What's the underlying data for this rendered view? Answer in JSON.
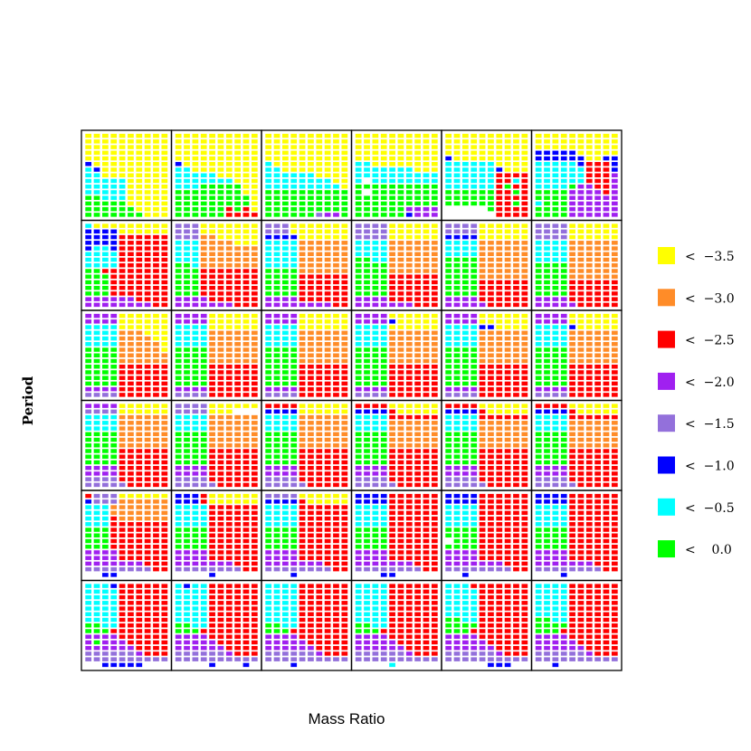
{
  "chart_data": {
    "type": "heatmap",
    "title": "",
    "xlabel": "Mass Ratio",
    "ylabel": "Period",
    "panel_grid": {
      "rows": 6,
      "cols": 6
    },
    "cell_grid": {
      "rows": 15,
      "cols": 10
    },
    "legend": {
      "placement": "right",
      "entries": [
        {
          "label": "<  −3.5",
          "color": "#FFFF00"
        },
        {
          "label": "<  −3.0",
          "color": "#FF8C28"
        },
        {
          "label": "<  −2.5",
          "color": "#FF0000"
        },
        {
          "label": "<  −2.0",
          "color": "#A020F0"
        },
        {
          "label": "<  −1.5",
          "color": "#9370DB"
        },
        {
          "label": "<  −1.0",
          "color": "#0000FF"
        },
        {
          "label": "<  −0.5",
          "color": "#00FFFF"
        },
        {
          "label": "<    0.0",
          "color": "#00FF00"
        }
      ]
    },
    "palette": {
      "Y": "#FFFF00",
      "O": "#FF8C28",
      "R": "#FF0000",
      "P": "#A020F0",
      "L": "#9370DB",
      "B": "#0000FF",
      "C": "#00FFFF",
      "G": "#00FF00",
      "W": "#FFFFFF"
    },
    "panels": [
      [
        [
          "YYYYYYYYYY",
          "YYYYYYYYYY",
          "YYYYYYYYYY",
          "YYYYYYYYYY",
          "YYYYYYYYYY",
          "BYYYYYYYYY",
          "CBYYYYYYYY",
          "CCYYYYYYYY",
          "CCCCCYYYYY",
          "CCCCCYYYYY",
          "CCCCCYYYYY",
          "GGCCCYYYYY",
          "GGGGGYYYYY",
          "GGGGGGYYYY",
          "GGGGGGGYYY"
        ],
        [
          "YYYYYYYYYY",
          "YYYYYYYYYY",
          "YYYYYYYYYY",
          "YYYYYYYYYY",
          "YYYYYYYYYY",
          "BYYYYYYYYY",
          "CCYYYYYYYY",
          "CCCCCYYYYY",
          "CCCCCCCYYY",
          "CCCGGGGGYY",
          "GGGGGGGGYY",
          "GGGGGGGGGY",
          "GGGGGGGGGY",
          "GGGGGGRGRY",
          "GGGGGGRRRR"
        ],
        [
          "YYYYYYYYYY",
          "YYYYYYYYYY",
          "YYYYYYYYYY",
          "YYYYYYYYYY",
          "YYYYYYYYYY",
          "CYYYYYYYYY",
          "CCYYYYYYYY",
          "CCCCCCYYYY",
          "CCCCCCCCYY",
          "CCCCCCCCCY",
          "GGGGGGGGGG",
          "GGGGGGGGGG",
          "GGGGGGGGGG",
          "GGGGGGGGGG",
          "GGGGGGLPPG"
        ],
        [
          "YYYYYYYYYY",
          "YYYYYYYYYY",
          "YYYYYYYYYY",
          "YYYYYYYYYY",
          "YYYYYYYYYY",
          "CCYYYYYYYY",
          "CCCCCCCYYY",
          "CCCCCCCCCC",
          "CWCCCCCCCC",
          "GGGGGGGGGG",
          "GWGGGGGGGG",
          "GGGGGGGGGG",
          "GGGGGGGGGG",
          "GGGGGGPPPP",
          "GGGGGGBPPP"
        ],
        [
          "YYYYYYYYYY",
          "YYYYYYYYYY",
          "YYYYYYYYYY",
          "YYYYYYYYYY",
          "BYYYYYYYYY",
          "CCCCCCYYYY",
          "CCCCCCBYYY",
          "CCCCCCRRRR",
          "CCCCCCRRCR",
          "CCCCCCRGRR",
          "GGGGGGRRGR",
          "GGGGGGRRRR",
          "GGGGGGRRGR",
          "WWWWWGRRRR",
          "WWWWWWRRRR"
        ],
        [
          "YYYYYYYYYY",
          "YYYYYYYYYY",
          "YYYYYYYYYY",
          "BBBBBYYYYY",
          "BBBBBBYYBB",
          "CCCCCBRRRB",
          "CCCCCCRRRB",
          "CCCCCCRRRP",
          "CCCCCCRRRP",
          "CCCCGPPRRP",
          "GGGGPPPPRP",
          "GGGGPPPPPP",
          "CGGGPPPPPP",
          "GGGGPPPPPP",
          "GGGGPPPPPP"
        ]
      ],
      [
        [
          "CYYYYYYYYY",
          "BBBBYYYYYY",
          "BBBBRRRRRR",
          "BBBBRRRRRR",
          "BCCBRRRRRR",
          "CCCCRRRRRR",
          "CCCCRRRRRR",
          "CCCCRRRRRR",
          "GGRRRRRRRR",
          "GGGRRRRRRR",
          "GGGRRRRRRR",
          "GGGRRRRRRR",
          "GGGRRRRRRR",
          "PPPPPPRRRR",
          "PPPPPPPPRR"
        ],
        [
          "LLLYYYYYYY",
          "LLLYYYYYYY",
          "LLLOOYYYYY",
          "CCCOOOOYYY",
          "CCCOOOOOOO",
          "CCCOOOOOOO",
          "CCCOOOOOOO",
          "GGCOOOOOOO",
          "GGGRRRRRRR",
          "GGGRRRRRRR",
          "GGGRRRRRRR",
          "GGGRRRRRRR",
          "GGGRRRRRRR",
          "PPPPRRRRRR",
          "PPPPPPPRRR"
        ],
        [
          "LLLYYYYYYY",
          "LLLYYYYYYY",
          "BBBBYYYYYY",
          "CCCCOOOOOO",
          "CCCCOOOOOO",
          "CCCCOOOOOO",
          "CCCCOOOOOO",
          "CCCCOOOOOO",
          "GGGGOOOOOO",
          "GGGGRRRRRR",
          "GGGGRRRRRR",
          "GGGGRRRRRR",
          "GGGGRRRRRR",
          "PPPPRRRRRR",
          "PPPPPPPPRR"
        ],
        [
          "LLLLYYYYYY",
          "LLLLYYYYYY",
          "LLLLYYYYYY",
          "CCCCOOOOOO",
          "CCCCOOOOOO",
          "CCCCOOOOOO",
          "GGCCOOOOOO",
          "GGGGOOOOOO",
          "GGGGOOOOOO",
          "GGGGRRRRRR",
          "GGGGRRRRRR",
          "GGGGRRRRRR",
          "GGGGRRRRRR",
          "PPPPRRRRRR",
          "PPPPPPPRRR"
        ],
        [
          "LLLLYYYYYY",
          "LLLLYYYYYY",
          "BBBBYYYYYY",
          "CCCCOOOOOO",
          "CCCCOOOOOO",
          "CCCCOOOOOO",
          "GGGGOOOOOO",
          "GGGGOOOOOO",
          "GGGGOOOOOO",
          "GGGGOOOOOO",
          "GGGGRRRRRR",
          "GGGGRRRRRR",
          "GGGGRRRRRR",
          "PPPPRRRRRR",
          "PPPPPRRRRR"
        ],
        [
          "LLLLYYYYYY",
          "LLLLYYYYYY",
          "LLLLYYYYYY",
          "CCCCOOOOOO",
          "CCCCOOOOOO",
          "CCCCOOOOOO",
          "CCCCOOOOOO",
          "GGGGOOOOOO",
          "GGGGOOOOOO",
          "GGGGOOOOOO",
          "GGGGRRRRRR",
          "GGGGRRRRRR",
          "GGGGRRRRRR",
          "PPPPRRRRRR",
          "PPPPPRRRRR"
        ]
      ],
      [
        [
          "PPPPYYYYYY",
          "PPPPYYYYYY",
          "CCCCYYYYYY",
          "CCCCOOOYYY",
          "CCCCOOOOYY",
          "CCCCOOOOOY",
          "GGGGOOOOOY",
          "GGGGOOOOOO",
          "GGGGOOOOOO",
          "GGGGRRRRRR",
          "GGGGRRRRRR",
          "GGGGRRRRRR",
          "GGGGRRRRRR",
          "PPPPRRRRRR",
          "LLLLRRRRRR"
        ],
        [
          "PPPPYYYYYY",
          "PPPPYYYYYY",
          "CCCCYYYYYY",
          "CCCCOOOOOO",
          "CCCCOOOOOO",
          "CCCCOOOOOO",
          "GGGGOOOOOO",
          "GGGGOOOOOO",
          "GGGGOOOOOO",
          "GGGGRRRRRR",
          "GGGGRRRRRR",
          "GGGGRRRRRR",
          "GGGGRRRRRR",
          "PPPPRRRRRR",
          "LLLLRRRRRR"
        ],
        [
          "PPPPYYYYYY",
          "PPPPYYYYYY",
          "CCCCYYYYYY",
          "CCCCOOOOOO",
          "CCCCOOOOOO",
          "CCCCOOOOOO",
          "GGGGOOOOOO",
          "GGGGOOOOOO",
          "GGGGOOOOOO",
          "GGGGRRRRRR",
          "GGGGRRRRRR",
          "GGGGRRRRRR",
          "GGGGRRRRRR",
          "PPPPRRRRRR",
          "LLLLRRRRRR"
        ],
        [
          "PPPPYYYYYY",
          "PPPPBYYYYY",
          "CCCCYYYYYY",
          "CCCCOOOOOO",
          "CCCCOOOOOO",
          "CCCCOOOOOO",
          "GGGGOOOOOO",
          "GGGGOOOOOO",
          "GGGGOOOOOO",
          "GGGGRRRRRR",
          "GGGGRRRRRR",
          "GGGGRRRRRR",
          "GGGGRRRRRR",
          "PPPPRRRRRR",
          "LLLLRRRRRR"
        ],
        [
          "PPPPYYYYYY",
          "PPPPYYYYYY",
          "CCCCBBYYYY",
          "CCCCOOOOOO",
          "CCCCOOOOOO",
          "CCCCOOOOOO",
          "GGGGOOOOOO",
          "GGGGOOOOOO",
          "GGGGOOOOOO",
          "GGGGRRRRRR",
          "GGGGRRRRRR",
          "GGGGRRRRRR",
          "GGGGRRRRRR",
          "PPPPRRRRRR",
          "LLLLRRRRRR"
        ],
        [
          "PPPPYYYYYY",
          "PPPPYYYYYY",
          "CCCCBYYYYY",
          "CCCCOOOOOO",
          "CCCCOOOOOO",
          "CCCCOOOOOO",
          "GGGGOOOOOO",
          "GGGGOOOOOO",
          "GGGGOOOOOO",
          "GGGGRRRRRR",
          "GGGGRRRRRR",
          "GGGGRRRRRR",
          "GGGGRRRRRR",
          "PPPPRRRRRR",
          "LLLLRRRRRR"
        ]
      ],
      [
        [
          "PPPPYYYYYY",
          "LLLLYYYYYY",
          "CCCCOOOOOO",
          "CCCCOOOOOO",
          "CCCCOOOOOO",
          "GGGGOOOOOO",
          "GGGGOOOOOO",
          "GGGGOOOOOO",
          "GGGGRRRRRR",
          "GGGGRRRRRR",
          "GGGGRRRRRR",
          "PPPPRRRRRR",
          "PPPPRRRRRR",
          "LLLLRRRRRR",
          "LLLLLRRRRR"
        ],
        [
          "LLLLYYYYYY",
          "LLLLYYYWWW",
          "CCCCOOOOOO",
          "CCCCOOOOOO",
          "CCCCOOOOOO",
          "GGGGOOOOOO",
          "GGGGOOOOOO",
          "GGGGOOOOOO",
          "GGGGRRRRRR",
          "GGGGRRRRRR",
          "GGGGRRRRRR",
          "PPPPRRRRRR",
          "PPPPRRRRRR",
          "LLLLRRRRRR",
          "LLLLLRRRRR"
        ],
        [
          "RRRRYYYYYY",
          "BBBBYYYYYY",
          "CCCCOOOOOO",
          "CCCCOOOOOO",
          "CCCCOOOOOO",
          "GGGGOOOOOO",
          "GGGGOOOOOO",
          "GGGGOOOOOO",
          "GGGGRRRRRR",
          "GGGGRRRRRR",
          "GGGGRRRRRR",
          "PPPPRRRRRR",
          "PPPPRRRRRR",
          "LLLLRRRRRR",
          "LLLLLRRRRR"
        ],
        [
          "RRRRYYYYYY",
          "BBBBRYYYYY",
          "CCCCRRRRRR",
          "CCCCOOOOOO",
          "CCCCOOOOOO",
          "GGGGOOOOOO",
          "GGGGOOOOOO",
          "GGGGOOOOOO",
          "GGGGRRRRRR",
          "GGGGRRRRRR",
          "GGGGRRRRRR",
          "PPPPRRRRRR",
          "PPPPRRRRRR",
          "LLLLRRRRRR",
          "LLLLLRRRRR"
        ],
        [
          "RRRRYYYYYY",
          "BBBBRYYYYY",
          "CCCCRRRRRR",
          "CCCCOOOOOO",
          "CCCCOOOOOO",
          "GGGGOOOOOO",
          "GGGGOOOOOO",
          "GGGGOOOOOO",
          "GGGGRRRRRR",
          "GGGGRRRRRR",
          "GGGGRRRRRR",
          "PPPPRRRRRR",
          "PPPPRRRRRR",
          "LLLLRRRRRR",
          "LLLLLRRRRR"
        ],
        [
          "RRRRYYYYYY",
          "BBBBRYYYYY",
          "CCCCRRRRRR",
          "CCCCOOOOOO",
          "CCCCOOOOOO",
          "GGGGOOOOOO",
          "GGGGOOOOOO",
          "GGGGOOOOOO",
          "GGGGRRRRRR",
          "GGGGRRRRRR",
          "GGGGRRRRRR",
          "PPPPRRRRRR",
          "PPPPRRRRRR",
          "LLLLRRRRRR",
          "LLLLLRRRRR"
        ]
      ],
      [
        [
          "RLLLYYYYYY",
          "BLLLOOOOOO",
          "CCCOOOOOOO",
          "CCCOOOOOOO",
          "CCCROOOOOO",
          "CCCRRRRRRR",
          "GGGRRRRRRR",
          "GGGRRRRRRR",
          "GGGRRRRRRR",
          "GGGRRRRRRR",
          "PPPPRRRRRR",
          "PPPPRRRRRR",
          "PPPPPPPRRR",
          "LLLLLLLLRR",
          "WWBBWWWWWW"
        ],
        [
          "BBBRYYYYYY",
          "BBBRYYYYYY",
          "CCCCRRRRRR",
          "CCCCRRRRRR",
          "CCCCRRRRRR",
          "CCCCRRRRRR",
          "GGGGRRRRRR",
          "GGGGRRRRRR",
          "GGGGRRRRRR",
          "GGGGRRRRRR",
          "PPPPRRRRRR",
          "PPPPRRRRRR",
          "PPPPPPPRRR",
          "LLLLLLLLRR",
          "WWWWBWWWWW"
        ],
        [
          "LLLLYYYYYY",
          "BBBBRYYYYY",
          "CCCCRRRRRR",
          "CCCCRRRRRR",
          "CCCCRRRRRR",
          "CCCCRRRRRR",
          "GGGGRRRRRR",
          "GGGGRRRRRR",
          "GGGGRRRRRR",
          "GGGGRRRRRR",
          "PPPPRRRRRR",
          "PPPPRRRRRR",
          "PPPPPPPRRR",
          "LLLLLLLLRR",
          "WWWBWWWWWW"
        ],
        [
          "BBBBRRRRRR",
          "BBBBRRRRRR",
          "CCCCRRRRRR",
          "CCCCRRRRRR",
          "CCCCRRRRRR",
          "CCCCRRRRRR",
          "GGGGRRRRRR",
          "GGGGRRRRRR",
          "GGGGRRRRRR",
          "GGGGRRRRRR",
          "PPPPRRRRRR",
          "PPPPRRRRRR",
          "PPPPPPPRRR",
          "LLLLLLLLRR",
          "WWWBBWWWWW"
        ],
        [
          "BBBBRRRRRR",
          "BBBBRRRRRR",
          "CCCCRRRRRR",
          "CCCCRRRRRR",
          "CCCCRRRRRR",
          "CCCCRRRRRR",
          "GGGGRRRRRR",
          "GGGGRRRRRR",
          "WGGGRRRRRR",
          "GGGGRRRRRR",
          "PPPPRRRRRR",
          "PPPPRRRRRR",
          "PPPPPPPRRR",
          "LLLLLLLLRR",
          "WWBWWWWWWW"
        ],
        [
          "BBBBRRRRRR",
          "BBBBRRRRRR",
          "CCCCRRRRRR",
          "CCCCRRRRRR",
          "CCCCRRRRRR",
          "CCCCRRRRRR",
          "GGGGRRRRRR",
          "GGGGRRRRRR",
          "GGGGRRRRRR",
          "GGGGRRRRRR",
          "PPPPRRRRRR",
          "PPPPRRRRRR",
          "PPPPPPPRRR",
          "LLLLLLLLRR",
          "WWWBWWWWWW"
        ]
      ],
      [
        [
          "CCCBRRRRRR",
          "CCCCRRRRRR",
          "CCCCRRRRRR",
          "CCCCRRRRRR",
          "CCCCRRRRRR",
          "CCCCRRRRRR",
          "CCCCRRRRRR",
          "GGCCRRRRRR",
          "GGGRRRRRRR",
          "PPPPRRRRRR",
          "PGPPPRRRRR",
          "PPPPPPRRRR",
          "LLLLLLPRRR",
          "LLLLLLLLLL",
          "WWBBBBBWWW"
        ],
        [
          "CBCCRRRRRR",
          "CCCCRRRRRR",
          "CCCCRRRRRR",
          "CCCCRRRRRR",
          "CCCCRRRRRR",
          "CCCCRRRRRR",
          "CCCCRRRRRR",
          "GGCCRRRRRR",
          "GGGRRRRRRR",
          "PPPPRRRRRR",
          "PPPPPRRRRR",
          "PPPPPPRRRR",
          "LLLLLLPRRR",
          "LLLLLLLLLL",
          "WWWWBWWWBW"
        ],
        [
          "CCCCRRRRRR",
          "CCCCRRRRRR",
          "CCCCRRRRRR",
          "CCCCRRRRRR",
          "CCCCRRRRRR",
          "CCCCRRRRRR",
          "CCCCRRRRRR",
          "GGCCRRRRRR",
          "GGGRRRRRRR",
          "PPPPRRRRRR",
          "PPPPPRRRRR",
          "PPPPPPRRRR",
          "LLLLLLPRRR",
          "LLLLLLLLLL",
          "WWWBWWWWWW"
        ],
        [
          "CCCCRRRRRR",
          "CCCCRRRRRR",
          "CCCCRRRRRR",
          "CCCCRRRRRR",
          "CCCCRRRRRR",
          "CCCCRRRRRR",
          "CCCCRRRRRR",
          "GGCCRRRRRR",
          "GGGRRRRRRR",
          "PPPPRRRRRR",
          "PPPPPRRRRR",
          "PPPPPPRRRR",
          "LLLLLLPRRR",
          "LLLLLLLLLL",
          "WWWWCWWWWW"
        ],
        [
          "CCCRRRRRRR",
          "CCCCRRRRRR",
          "CCCCRRRRRR",
          "CCCCRRRRRR",
          "CCCCRRRRRR",
          "CCCCRRRRRR",
          "GGCCRRRRRR",
          "GGGGRRRRRR",
          "GGGRRRRRRR",
          "PPPPRRRRRR",
          "PPPPPRRRRR",
          "PPPPPPRRRR",
          "LLLLLLPRRR",
          "LLLLLLLLLL",
          "WWWWWBBBWW"
        ],
        [
          "CCCCRRRRRR",
          "CCCCRRRRRR",
          "CCCCRRRRRR",
          "CCCCRRRRRR",
          "CCCCRRRRRR",
          "CCCCRRRRRR",
          "GGCCRRRRRR",
          "GGGGRRRRRR",
          "GGGRRRRRRR",
          "PPPPRRRRRR",
          "PPPPPRRRRR",
          "PPPPPPRRRR",
          "LLLLLLPRRR",
          "LLLLLLLLLL",
          "WWBWWWWWWW"
        ]
      ]
    ]
  }
}
